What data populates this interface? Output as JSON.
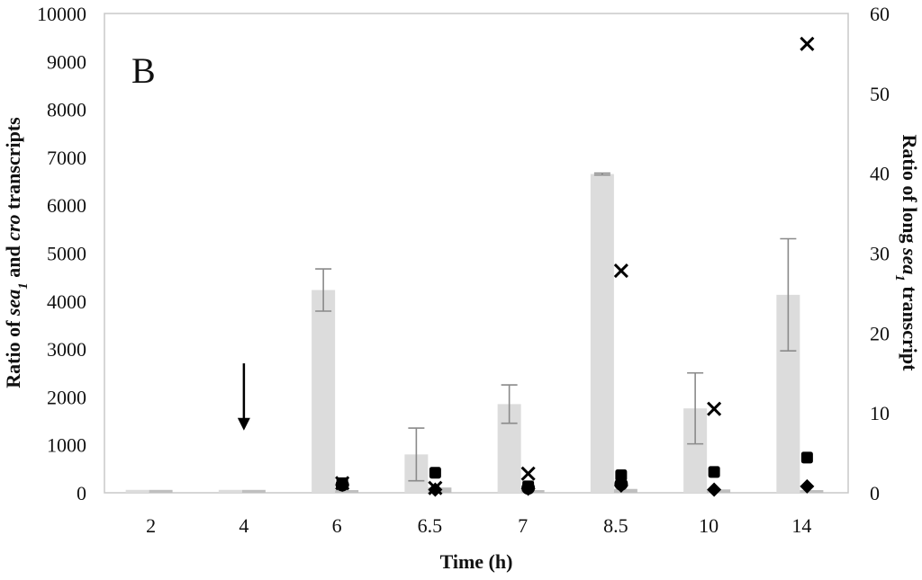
{
  "panel_label": "B",
  "colors": {
    "bar_main": "#dcdcdc",
    "bar_secondary": "#bfbfbf",
    "error_bar": "#8a8a8a",
    "axis": "#c8c8c8",
    "marker": "#000000"
  },
  "chart_data": {
    "type": "bar",
    "xlabel": "Time (h)",
    "ylabel_left": {
      "prefix": "Ratio of ",
      "i1": "sea",
      "sub": "1",
      "mid": " and ",
      "i2": "cro",
      "suffix": " transcripts"
    },
    "ylabel_right": {
      "prefix": "Ratio of long ",
      "i1": "sea",
      "sub": "1",
      "suffix": " transcript"
    },
    "categories": [
      "2",
      "4",
      "6",
      "6.5",
      "7",
      "8.5",
      "10",
      "14"
    ],
    "ylim_left": [
      0,
      10000
    ],
    "yticks_left": [
      "0",
      "1000",
      "2000",
      "3000",
      "4000",
      "5000",
      "6000",
      "7000",
      "8000",
      "9000",
      "10000"
    ],
    "ylim_right": [
      0,
      60
    ],
    "yticks_right": [
      "0",
      "10",
      "20",
      "30",
      "40",
      "50",
      "60"
    ],
    "grid": false,
    "series": [
      {
        "type": "bar",
        "axis": "left",
        "values": [
          60,
          60,
          4230,
          800,
          1850,
          6650,
          1760,
          4130
        ],
        "errors": [
          0,
          0,
          440,
          550,
          400,
          20,
          740,
          1170
        ]
      },
      {
        "type": "bar",
        "axis": "left",
        "values": [
          60,
          60,
          50,
          110,
          50,
          80,
          70,
          50
        ],
        "errors": [
          0,
          0,
          0,
          0,
          0,
          0,
          0,
          0
        ]
      },
      {
        "type": "x",
        "axis": "right",
        "values": [
          null,
          null,
          1.2,
          0.6,
          2.4,
          27.8,
          10.5,
          56.2
        ]
      },
      {
        "type": "square",
        "axis": "right",
        "values": [
          null,
          null,
          1.2,
          2.5,
          0.8,
          2.2,
          2.6,
          4.4
        ]
      },
      {
        "type": "circle",
        "axis": "right",
        "values": [
          null,
          null,
          1.0,
          null,
          0.6,
          1.1,
          null,
          null
        ]
      },
      {
        "type": "diamond",
        "axis": "right",
        "values": [
          null,
          null,
          1.0,
          0.4,
          0.5,
          0.9,
          0.4,
          0.8
        ]
      }
    ],
    "annotations": [
      {
        "type": "arrow-down",
        "category": "4",
        "from_value": 2700,
        "to_value": 1300
      }
    ]
  }
}
